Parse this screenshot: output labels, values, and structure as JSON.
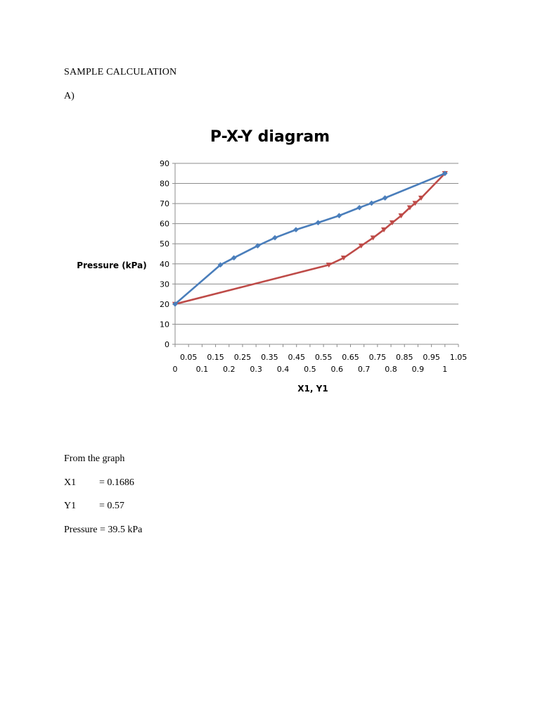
{
  "document": {
    "heading": "SAMPLE CALCULATION",
    "part_label": "A)",
    "from_graph": "From the graph",
    "results": [
      {
        "label": "X1",
        "value": "= 0.1686"
      },
      {
        "label": "Y1",
        "value": "= 0.57"
      },
      {
        "label": "Pressure",
        "value": "= 39.5 kPa"
      }
    ]
  },
  "colors": {
    "liquid_series": "#4a7ebb",
    "vapor_series": "#be4b48",
    "grid": "#8c8c8c",
    "axis_text": "#000000"
  },
  "chart_data": {
    "type": "scatter",
    "title": "P-X-Y diagram",
    "xlabel": "X1, Y1",
    "ylabel": "Pressure (kPa)",
    "ylim": [
      0,
      90
    ],
    "yticks": [
      "0",
      "10",
      "20",
      "30",
      "40",
      "50",
      "60",
      "70",
      "80",
      "90"
    ],
    "xlim": [
      0,
      1.05
    ],
    "x_ticks_secondary": [
      "0.05",
      "0.15",
      "0.25",
      "0.35",
      "0.45",
      "0.55",
      "0.65",
      "0.75",
      "0.85",
      "0.95",
      "1.05"
    ],
    "x_ticks_primary": [
      "0",
      "0.1",
      "0.2",
      "0.3",
      "0.4",
      "0.5",
      "0.6",
      "0.7",
      "0.8",
      "0.9",
      "1"
    ],
    "grid": "horizontal",
    "legend": "none",
    "series": [
      {
        "marker": "diamond",
        "color": "#4a7ebb",
        "points": [
          [
            0.0,
            20
          ],
          [
            0.168,
            39.5
          ],
          [
            0.218,
            43
          ],
          [
            0.306,
            49
          ],
          [
            0.37,
            53
          ],
          [
            0.448,
            57
          ],
          [
            0.53,
            60.5
          ],
          [
            0.608,
            64
          ],
          [
            0.683,
            68
          ],
          [
            0.728,
            70.2
          ],
          [
            0.778,
            72.8
          ],
          [
            1.0,
            85
          ]
        ]
      },
      {
        "marker": "triangle",
        "color": "#be4b48",
        "points": [
          [
            0.0,
            20
          ],
          [
            0.57,
            39.5
          ],
          [
            0.625,
            43
          ],
          [
            0.69,
            49
          ],
          [
            0.734,
            53
          ],
          [
            0.774,
            57
          ],
          [
            0.805,
            60.5
          ],
          [
            0.838,
            64
          ],
          [
            0.87,
            68
          ],
          [
            0.89,
            70.2
          ],
          [
            0.912,
            72.8
          ],
          [
            1.0,
            85
          ]
        ]
      }
    ]
  }
}
